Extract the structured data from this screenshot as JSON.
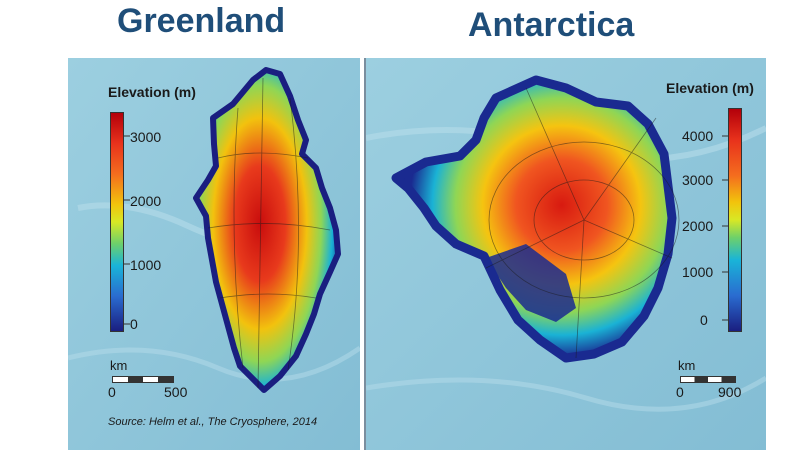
{
  "greenland": {
    "title": "Greenland",
    "colorbar": {
      "title": "Elevation (m)",
      "ticks": [
        "3000",
        "2000",
        "1000",
        "0"
      ]
    },
    "scale": {
      "unit": "km",
      "min": "0",
      "max": "500"
    },
    "source": "Source: Helm et al., The Cryosphere, 2014"
  },
  "antarctica": {
    "title": "Antarctica",
    "colorbar": {
      "title": "Elevation (m)",
      "ticks": [
        "4000",
        "3000",
        "2000",
        "1000",
        "0"
      ]
    },
    "scale": {
      "unit": "km",
      "min": "0",
      "max": "900"
    }
  },
  "colors": {
    "title": "#1f4e79",
    "ocean": "#8fc4da",
    "low": "#1a1e80",
    "high": "#b3000a"
  }
}
